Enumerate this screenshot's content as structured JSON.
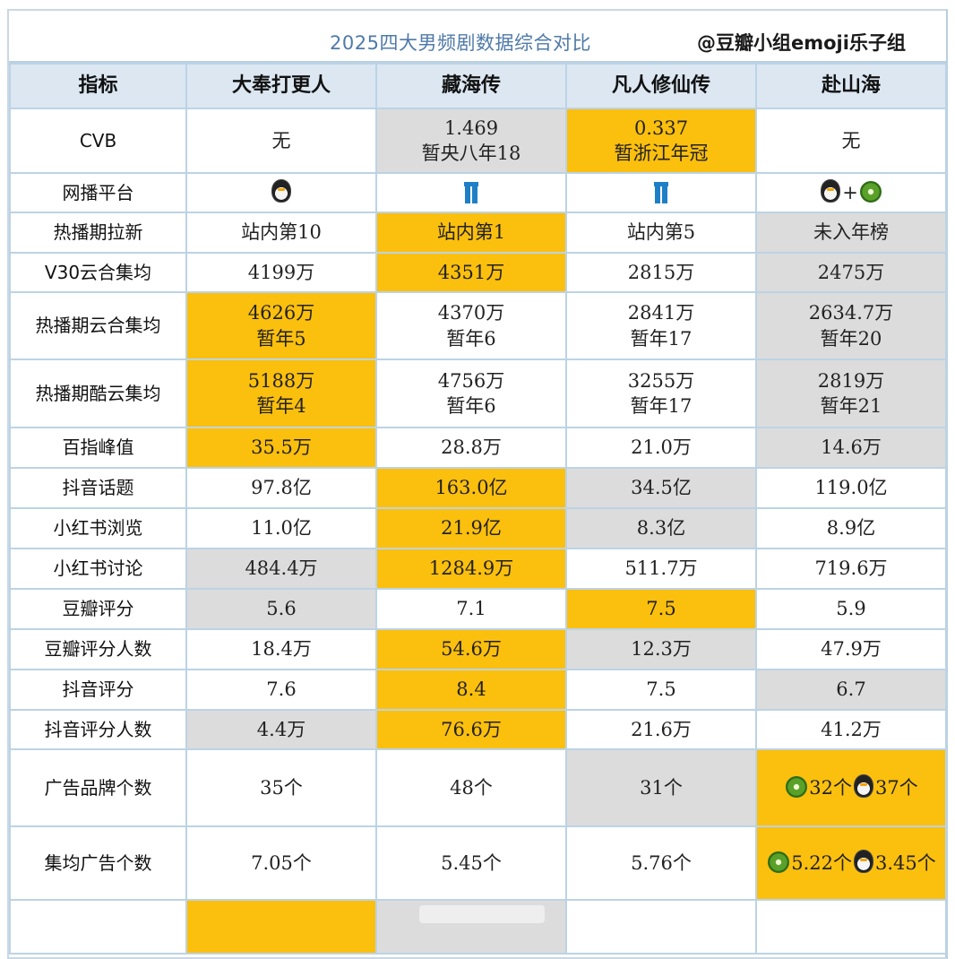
{
  "title": "2025四大男频剧数据综合对比",
  "watermark": "@豆瓣小组emoji乐子组",
  "colors": {
    "highlight": "#fbbf0e",
    "gray": "#dcdcdc",
    "header_bg": "#dce7f2",
    "border": "#bcd3e5",
    "title": "#4f7aa8"
  },
  "header": [
    "指标",
    "大奉打更人",
    "藏海传",
    "凡人修仙传",
    "赴山海"
  ],
  "rows": [
    {
      "label": "CVB",
      "cells": [
        {
          "lines": [
            "无"
          ],
          "style": "white"
        },
        {
          "lines": [
            "1.469",
            "暂央八年18"
          ],
          "style": "gray"
        },
        {
          "lines": [
            "0.337",
            "暂浙江年冠"
          ],
          "style": "hl"
        },
        {
          "lines": [
            "无"
          ],
          "style": "white"
        }
      ]
    },
    {
      "label": "网播平台",
      "cells": [
        {
          "icons": [
            "penguin-icon"
          ],
          "style": "white"
        },
        {
          "icons": [
            "jeans-icon"
          ],
          "style": "white"
        },
        {
          "icons": [
            "jeans-icon"
          ],
          "style": "white"
        },
        {
          "icons": [
            "penguin-icon",
            "plus",
            "kiwi-icon"
          ],
          "plus": "+",
          "style": "white"
        }
      ]
    },
    {
      "label": "热播期拉新",
      "cells": [
        {
          "lines": [
            "站内第10"
          ],
          "style": "white"
        },
        {
          "lines": [
            "站内第1"
          ],
          "style": "hl"
        },
        {
          "lines": [
            "站内第5"
          ],
          "style": "white"
        },
        {
          "lines": [
            "未入年榜"
          ],
          "style": "gray"
        }
      ]
    },
    {
      "label": "V30云合集均",
      "cells": [
        {
          "lines": [
            "4199万"
          ],
          "style": "white"
        },
        {
          "lines": [
            "4351万"
          ],
          "style": "hl"
        },
        {
          "lines": [
            "2815万"
          ],
          "style": "white"
        },
        {
          "lines": [
            "2475万"
          ],
          "style": "gray"
        }
      ]
    },
    {
      "label": "热播期云合集均",
      "cells": [
        {
          "lines": [
            "4626万",
            "暂年5"
          ],
          "style": "hl"
        },
        {
          "lines": [
            "4370万",
            "暂年6"
          ],
          "style": "white"
        },
        {
          "lines": [
            "2841万",
            "暂年17"
          ],
          "style": "white"
        },
        {
          "lines": [
            "2634.7万",
            "暂年20"
          ],
          "style": "gray"
        }
      ]
    },
    {
      "label": "热播期酷云集均",
      "cells": [
        {
          "lines": [
            "5188万",
            "暂年4"
          ],
          "style": "hl"
        },
        {
          "lines": [
            "4756万",
            "暂年6"
          ],
          "style": "white"
        },
        {
          "lines": [
            "3255万",
            "暂年17"
          ],
          "style": "white"
        },
        {
          "lines": [
            "2819万",
            "暂年21"
          ],
          "style": "gray"
        }
      ]
    },
    {
      "label": "百指峰值",
      "cells": [
        {
          "lines": [
            "35.5万"
          ],
          "style": "hl"
        },
        {
          "lines": [
            "28.8万"
          ],
          "style": "white"
        },
        {
          "lines": [
            "21.0万"
          ],
          "style": "white"
        },
        {
          "lines": [
            "14.6万"
          ],
          "style": "gray"
        }
      ]
    },
    {
      "label": "抖音话题",
      "cells": [
        {
          "lines": [
            "97.8亿"
          ],
          "style": "white"
        },
        {
          "lines": [
            "163.0亿"
          ],
          "style": "hl"
        },
        {
          "lines": [
            "34.5亿"
          ],
          "style": "gray"
        },
        {
          "lines": [
            "119.0亿"
          ],
          "style": "white"
        }
      ]
    },
    {
      "label": "小红书浏览",
      "cells": [
        {
          "lines": [
            "11.0亿"
          ],
          "style": "white"
        },
        {
          "lines": [
            "21.9亿"
          ],
          "style": "hl"
        },
        {
          "lines": [
            "8.3亿"
          ],
          "style": "gray"
        },
        {
          "lines": [
            "8.9亿"
          ],
          "style": "white"
        }
      ]
    },
    {
      "label": "小红书讨论",
      "cells": [
        {
          "lines": [
            "484.4万"
          ],
          "style": "gray"
        },
        {
          "lines": [
            "1284.9万"
          ],
          "style": "hl"
        },
        {
          "lines": [
            "511.7万"
          ],
          "style": "white"
        },
        {
          "lines": [
            "719.6万"
          ],
          "style": "white"
        }
      ]
    },
    {
      "label": "豆瓣评分",
      "cells": [
        {
          "lines": [
            "5.6"
          ],
          "style": "gray"
        },
        {
          "lines": [
            "7.1"
          ],
          "style": "white"
        },
        {
          "lines": [
            "7.5"
          ],
          "style": "hl"
        },
        {
          "lines": [
            "5.9"
          ],
          "style": "white"
        }
      ]
    },
    {
      "label": "豆瓣评分人数",
      "cells": [
        {
          "lines": [
            "18.4万"
          ],
          "style": "white"
        },
        {
          "lines": [
            "54.6万"
          ],
          "style": "hl"
        },
        {
          "lines": [
            "12.3万"
          ],
          "style": "gray"
        },
        {
          "lines": [
            "47.9万"
          ],
          "style": "white"
        }
      ]
    },
    {
      "label": "抖音评分",
      "cells": [
        {
          "lines": [
            "7.6"
          ],
          "style": "white"
        },
        {
          "lines": [
            "8.4"
          ],
          "style": "hl"
        },
        {
          "lines": [
            "7.5"
          ],
          "style": "white"
        },
        {
          "lines": [
            "6.7"
          ],
          "style": "gray"
        }
      ]
    },
    {
      "label": "抖音评分人数",
      "cells": [
        {
          "lines": [
            "4.4万"
          ],
          "style": "gray"
        },
        {
          "lines": [
            "76.6万"
          ],
          "style": "hl"
        },
        {
          "lines": [
            "21.6万"
          ],
          "style": "white"
        },
        {
          "lines": [
            "41.2万"
          ],
          "style": "white"
        }
      ]
    },
    {
      "label": "广告品牌个数",
      "cells": [
        {
          "lines": [
            "35个"
          ],
          "style": "white"
        },
        {
          "lines": [
            "48个"
          ],
          "style": "white"
        },
        {
          "lines": [
            "31个"
          ],
          "style": "gray"
        },
        {
          "mixed": [
            {
              "icon": "kiwi-icon"
            },
            {
              "text": "32个"
            },
            {
              "icon": "penguin-icon"
            },
            {
              "text": "37个"
            }
          ],
          "style": "hl"
        }
      ]
    },
    {
      "label": "集均广告个数",
      "cells": [
        {
          "lines": [
            "7.05个"
          ],
          "style": "white"
        },
        {
          "lines": [
            "5.45个"
          ],
          "style": "white"
        },
        {
          "lines": [
            "5.76个"
          ],
          "style": "white"
        },
        {
          "mixed": [
            {
              "icon": "kiwi-icon"
            },
            {
              "text": "5.22个"
            },
            {
              "icon": "penguin-icon"
            },
            {
              "text": "3.45个"
            }
          ],
          "style": "hl"
        }
      ]
    }
  ],
  "partial_row": {
    "cells": [
      {
        "style": "white"
      },
      {
        "style": "hl"
      },
      {
        "style": "gray"
      },
      {
        "style": "white"
      },
      {
        "style": "white"
      }
    ]
  }
}
